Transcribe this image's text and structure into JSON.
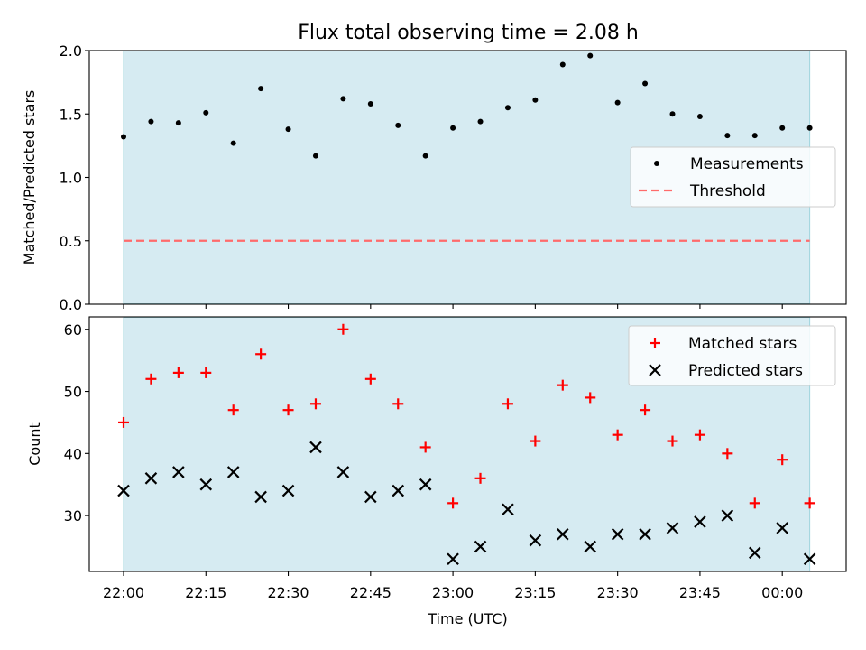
{
  "chart_data": [
    {
      "type": "scatter",
      "title": "Flux total observing time = 2.08 h",
      "xlabel": "",
      "ylabel": "Matched/Predicted stars",
      "ylim": [
        0,
        2.0
      ],
      "yticks": [
        "0.0",
        "0.5",
        "1.0",
        "1.5",
        "2.0"
      ],
      "shaded_region": {
        "from": "22:00",
        "to": "00:05",
        "color": "#add8e6"
      },
      "legend": {
        "placement": "center-right",
        "entries": [
          "Measurements",
          "Threshold"
        ]
      },
      "threshold": {
        "name": "Threshold",
        "value": 0.5,
        "color": "#ff6b6b"
      },
      "series": [
        {
          "name": "Measurements",
          "x": [
            "22:00",
            "22:05",
            "22:10",
            "22:15",
            "22:20",
            "22:25",
            "22:30",
            "22:35",
            "22:40",
            "22:45",
            "22:50",
            "22:55",
            "23:00",
            "23:05",
            "23:10",
            "23:15",
            "23:20",
            "23:25",
            "23:30",
            "23:35",
            "23:40",
            "23:45",
            "23:50",
            "23:55",
            "00:00",
            "00:05"
          ],
          "values": [
            1.32,
            1.44,
            1.43,
            1.51,
            1.27,
            1.7,
            1.38,
            1.17,
            1.62,
            1.58,
            1.41,
            1.17,
            1.39,
            1.44,
            1.55,
            1.61,
            1.89,
            1.96,
            1.59,
            1.74,
            1.5,
            1.48,
            1.33,
            1.33,
            1.39,
            1.39
          ]
        }
      ]
    },
    {
      "type": "scatter",
      "xlabel": "Time (UTC)",
      "ylabel": "Count",
      "ylim": [
        21,
        62
      ],
      "yticks": [
        "30",
        "40",
        "50",
        "60"
      ],
      "xticks": [
        "22:00",
        "22:15",
        "22:30",
        "22:45",
        "23:00",
        "23:15",
        "23:30",
        "23:45",
        "00:00"
      ],
      "shaded_region": {
        "from": "22:00",
        "to": "00:05",
        "color": "#add8e6"
      },
      "legend": {
        "placement": "top-right",
        "entries": [
          "Matched stars",
          "Predicted stars"
        ]
      },
      "series": [
        {
          "name": "Matched stars",
          "marker": "plus",
          "color": "#ff0000",
          "x": [
            "22:00",
            "22:05",
            "22:10",
            "22:15",
            "22:20",
            "22:25",
            "22:30",
            "22:35",
            "22:40",
            "22:45",
            "22:50",
            "22:55",
            "23:00",
            "23:05",
            "23:10",
            "23:15",
            "23:20",
            "23:25",
            "23:30",
            "23:35",
            "23:40",
            "23:45",
            "23:50",
            "23:55",
            "00:00",
            "00:05"
          ],
          "values": [
            45,
            52,
            53,
            53,
            47,
            56,
            47,
            48,
            60,
            52,
            48,
            41,
            32,
            36,
            48,
            42,
            51,
            49,
            43,
            47,
            42,
            43,
            40,
            32,
            39,
            32
          ]
        },
        {
          "name": "Predicted stars",
          "marker": "x",
          "color": "#000000",
          "x": [
            "22:00",
            "22:05",
            "22:10",
            "22:15",
            "22:20",
            "22:25",
            "22:30",
            "22:35",
            "22:40",
            "22:45",
            "22:50",
            "22:55",
            "23:00",
            "23:05",
            "23:10",
            "23:15",
            "23:20",
            "23:25",
            "23:30",
            "23:35",
            "23:40",
            "23:45",
            "23:50",
            "23:55",
            "00:00",
            "00:05"
          ],
          "values": [
            34,
            36,
            37,
            35,
            37,
            33,
            34,
            41,
            37,
            33,
            34,
            35,
            23,
            25,
            31,
            26,
            27,
            25,
            27,
            27,
            28,
            29,
            30,
            24,
            28,
            23
          ]
        }
      ]
    }
  ]
}
